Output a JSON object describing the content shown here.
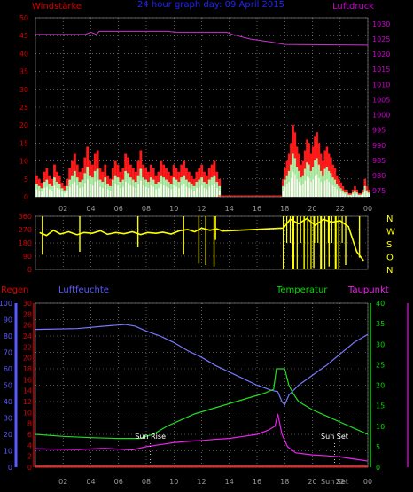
{
  "header": {
    "left_label": "Windstärke",
    "title": "24 hour graph day: 09 April 2015",
    "right_label": "Luftdruck"
  },
  "colors": {
    "background": "#000000",
    "grid": "#9a9a9a",
    "axis_red": "#d80000",
    "axis_magenta": "#cc00cc",
    "axis_blue": "#5a5aff",
    "axis_green": "#00dd00",
    "wind_gust": "#ff1a1a",
    "wind_avg": "#ffffff",
    "wind_light": "#a8f0a8",
    "wind_dir": "#ffff00",
    "pressure": "#cc33cc",
    "humidity": "#7777ff",
    "temperature": "#22dd22",
    "dewpoint": "#ee22ee",
    "rain": "#ff2222",
    "sun_marker": "#ffffff",
    "title": "#2222ff"
  },
  "x_ticks": [
    "02",
    "04",
    "06",
    "08",
    "10",
    "12",
    "14",
    "16",
    "18",
    "20",
    "22",
    "00"
  ],
  "chart_data": [
    {
      "type": "line",
      "name": "wind-pressure-panel",
      "x_range_hours": [
        0,
        24
      ],
      "y_left": {
        "label": "Windstärke",
        "range": [
          0,
          50
        ],
        "ticks": [
          "0",
          "5",
          "10",
          "15",
          "20",
          "25",
          "30",
          "35",
          "40",
          "45",
          "50"
        ]
      },
      "y_right": {
        "label": "Luftdruck",
        "range": [
          973,
          1032
        ],
        "ticks": [
          "975",
          "980",
          "985",
          "990",
          "995",
          "1000",
          "1005",
          "1010",
          "1015",
          "1020",
          "1025",
          "1030"
        ]
      },
      "series": [
        {
          "name": "Luftdruck",
          "axis": "right",
          "points": [
            [
              0,
              1026.5
            ],
            [
              3.6,
              1026.5
            ],
            [
              4.0,
              1027.2
            ],
            [
              4.4,
              1026.5
            ],
            [
              4.6,
              1027.5
            ],
            [
              9.5,
              1027.5
            ],
            [
              10.2,
              1027.2
            ],
            [
              13.8,
              1027.2
            ],
            [
              14.2,
              1026.5
            ],
            [
              15.5,
              1025
            ],
            [
              17.0,
              1024
            ],
            [
              18.0,
              1023.2
            ],
            [
              24,
              1023
            ]
          ]
        },
        {
          "name": "Windböen",
          "axis": "left",
          "segments": [
            {
              "start": 0.0,
              "end": 13.2,
              "values": [
                6,
                5,
                4,
                7,
                8,
                6,
                5,
                9,
                7,
                6,
                4,
                3,
                5,
                8,
                10,
                12,
                9,
                7,
                8,
                11,
                14,
                10,
                9,
                12,
                13,
                8,
                7,
                9,
                6,
                5,
                8,
                10,
                9,
                7,
                8,
                12,
                11,
                9,
                8,
                7,
                10,
                13,
                9,
                8,
                7,
                9,
                8,
                6,
                7,
                10,
                9,
                8,
                7,
                6,
                9,
                8,
                7,
                9,
                10,
                8,
                7,
                6,
                5,
                7,
                8,
                9,
                7,
                6,
                8,
                9,
                10,
                7,
                5
              ]
            },
            {
              "start": 17.8,
              "end": 24.0,
              "values": [
                5,
                8,
                10,
                12,
                15,
                20,
                18,
                14,
                12,
                9,
                10,
                13,
                16,
                15,
                12,
                14,
                17,
                18,
                15,
                12,
                10,
                13,
                14,
                12,
                11,
                9,
                8,
                6,
                5,
                4,
                3,
                2,
                2,
                1,
                1,
                2,
                3,
                2,
                1,
                1,
                2,
                5,
                3,
                2
              ]
            }
          ],
          "gap_value": 0
        },
        {
          "name": "Windmittel",
          "axis": "left",
          "derived_from": "Windböen",
          "ratio": 0.6
        },
        {
          "name": "Windmittel hell",
          "axis": "left",
          "derived_from": "Windböen",
          "ratio": 0.35
        }
      ]
    },
    {
      "type": "scatter",
      "name": "wind-direction-panel",
      "x_range_hours": [
        0,
        24
      ],
      "y_range": [
        0,
        360
      ],
      "y_ticks": [
        "0",
        "90",
        "180",
        "270",
        "360"
      ],
      "y_right_labels": [
        "N",
        "W",
        "S",
        "O",
        "N"
      ],
      "series": [
        {
          "name": "Windrichtung",
          "points": [
            [
              0.3,
              250
            ],
            [
              0.8,
              230
            ],
            [
              1.3,
              265
            ],
            [
              1.8,
              240
            ],
            [
              2.4,
              255
            ],
            [
              3.0,
              235
            ],
            [
              3.5,
              250
            ],
            [
              4.1,
              245
            ],
            [
              4.7,
              262
            ],
            [
              5.2,
              238
            ],
            [
              5.8,
              250
            ],
            [
              6.4,
              242
            ],
            [
              7.0,
              255
            ],
            [
              7.6,
              236
            ],
            [
              8.1,
              250
            ],
            [
              8.7,
              245
            ],
            [
              9.2,
              252
            ],
            [
              9.8,
              240
            ],
            [
              10.4,
              262
            ],
            [
              11.0,
              270
            ],
            [
              11.5,
              255
            ],
            [
              12.0,
              280
            ],
            [
              12.6,
              265
            ],
            [
              13.1,
              275
            ],
            [
              13.5,
              260
            ],
            [
              17.9,
              280
            ],
            [
              18.4,
              340
            ],
            [
              19.0,
              310
            ],
            [
              19.6,
              345
            ],
            [
              20.2,
              300
            ],
            [
              20.8,
              340
            ],
            [
              21.4,
              320
            ],
            [
              22.0,
              330
            ],
            [
              22.6,
              290
            ],
            [
              23.2,
              120
            ],
            [
              23.7,
              60
            ]
          ],
          "spikes": [
            [
              0.5,
              100
            ],
            [
              3.2,
              120
            ],
            [
              7.4,
              150
            ],
            [
              10.7,
              100
            ],
            [
              11.8,
              40
            ],
            [
              12.3,
              30
            ],
            [
              12.9,
              20
            ],
            [
              13.0,
              200
            ],
            [
              17.9,
              0
            ],
            [
              18.6,
              0
            ],
            [
              19.4,
              0
            ],
            [
              20.1,
              10
            ],
            [
              20.6,
              0
            ],
            [
              21.2,
              20
            ],
            [
              21.7,
              0
            ],
            [
              22.4,
              30
            ],
            [
              23.4,
              80
            ]
          ]
        }
      ]
    },
    {
      "type": "line",
      "name": "climate-panel",
      "x_range_hours": [
        0,
        24
      ],
      "axes": {
        "Regen": {
          "range": [
            0,
            100
          ],
          "ticks": [
            "0",
            "10",
            "20",
            "30",
            "40",
            "50",
            "60",
            "70",
            "80",
            "90",
            "100"
          ]
        },
        "Luftfeuchte": {
          "range": [
            0,
            30
          ],
          "ticks": [
            "0",
            "2",
            "4",
            "6",
            "8",
            "10",
            "12",
            "14",
            "16",
            "18",
            "20",
            "22",
            "24",
            "26",
            "28",
            "30"
          ]
        },
        "Temperatur": {
          "range": [
            0,
            40
          ],
          "ticks": [
            "0",
            "5",
            "10",
            "15",
            "20",
            "25",
            "30",
            "35",
            "40"
          ]
        }
      },
      "labels": {
        "rain": "Regen",
        "humidity": "Luftfeuchte",
        "temperature": "Temperatur",
        "dewpoint": "Taupunkt"
      },
      "series": [
        {
          "name": "Luftfeuchte",
          "axis": "Regen",
          "color_key": "humidity",
          "points": [
            [
              0,
              84
            ],
            [
              3,
              84.5
            ],
            [
              5,
              86
            ],
            [
              6.5,
              87
            ],
            [
              7.2,
              86
            ],
            [
              8,
              83
            ],
            [
              9,
              80
            ],
            [
              10,
              76
            ],
            [
              11,
              71
            ],
            [
              12,
              67
            ],
            [
              13,
              62
            ],
            [
              14,
              58
            ],
            [
              15,
              54
            ],
            [
              16,
              50
            ],
            [
              17,
              47
            ],
            [
              17.5,
              46
            ],
            [
              17.8,
              40
            ],
            [
              18,
              38
            ],
            [
              18.3,
              44
            ],
            [
              19,
              50
            ],
            [
              20,
              56
            ],
            [
              21,
              62
            ],
            [
              22,
              69
            ],
            [
              23,
              76
            ],
            [
              24,
              81
            ]
          ]
        },
        {
          "name": "Temperatur",
          "axis": "Temperatur",
          "color_key": "temperature",
          "points": [
            [
              0,
              8
            ],
            [
              2,
              7.5
            ],
            [
              4,
              7.2
            ],
            [
              6,
              7
            ],
            [
              7.5,
              7
            ],
            [
              8.5,
              8
            ],
            [
              9.5,
              10
            ],
            [
              10.5,
              11.5
            ],
            [
              11.5,
              13
            ],
            [
              12.5,
              14
            ],
            [
              13.5,
              15
            ],
            [
              14.5,
              16
            ],
            [
              15.5,
              17
            ],
            [
              16.5,
              18
            ],
            [
              17.2,
              19
            ],
            [
              17.4,
              24
            ],
            [
              18,
              24
            ],
            [
              18.3,
              20
            ],
            [
              18.6,
              18
            ],
            [
              19,
              16
            ],
            [
              20,
              14
            ],
            [
              21,
              12.5
            ],
            [
              22,
              11
            ],
            [
              23,
              9.5
            ],
            [
              24,
              8
            ]
          ]
        },
        {
          "name": "Taupunkt",
          "axis": "Temperatur",
          "color_key": "dewpoint",
          "points": [
            [
              0,
              4.5
            ],
            [
              3,
              4.3
            ],
            [
              5,
              4.6
            ],
            [
              7,
              4.2
            ],
            [
              8,
              5
            ],
            [
              9,
              5.5
            ],
            [
              10,
              6
            ],
            [
              11,
              6.3
            ],
            [
              12,
              6.5
            ],
            [
              13,
              6.8
            ],
            [
              14,
              7
            ],
            [
              15,
              7.5
            ],
            [
              16,
              8
            ],
            [
              16.8,
              9
            ],
            [
              17.3,
              10
            ],
            [
              17.5,
              13
            ],
            [
              17.8,
              8
            ],
            [
              18.2,
              5
            ],
            [
              18.8,
              3.5
            ],
            [
              20,
              3
            ],
            [
              21,
              2.8
            ],
            [
              22,
              2.5
            ],
            [
              23,
              2
            ],
            [
              24,
              1.5
            ]
          ]
        },
        {
          "name": "Regen",
          "axis": "Regen",
          "color_key": "rain",
          "points": [
            [
              0,
              0.5
            ],
            [
              24,
              0.5
            ]
          ]
        }
      ],
      "annotations": [
        {
          "text": "Sun Rise",
          "hour": 8.3
        },
        {
          "text": "Sun Set",
          "hour": 21.6
        }
      ],
      "x_tick_extra": "Sun Set"
    }
  ]
}
